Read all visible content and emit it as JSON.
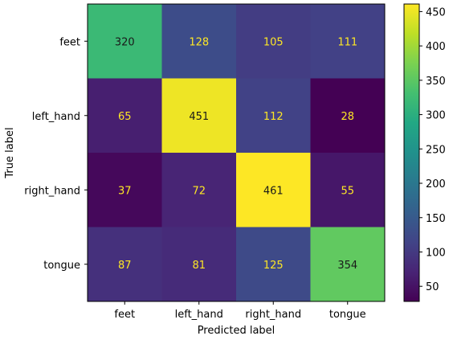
{
  "chart_data": {
    "type": "heatmap",
    "title": "",
    "xlabel": "Predicted label",
    "ylabel": "True label",
    "x_categories": [
      "feet",
      "left_hand",
      "right_hand",
      "tongue"
    ],
    "y_categories": [
      "feet",
      "left_hand",
      "right_hand",
      "tongue"
    ],
    "values": [
      [
        320,
        128,
        105,
        111
      ],
      [
        65,
        451,
        112,
        28
      ],
      [
        37,
        72,
        461,
        55
      ],
      [
        87,
        81,
        125,
        354
      ]
    ],
    "colormap": "viridis",
    "value_range": [
      28,
      461
    ],
    "colorbar_ticks": [
      50,
      100,
      150,
      200,
      250,
      300,
      350,
      400,
      450
    ],
    "grid": false,
    "legend": "colorbar-right",
    "text_color_dark_cells": "#fde725",
    "text_color_light_cells": "#1a1a1a"
  }
}
